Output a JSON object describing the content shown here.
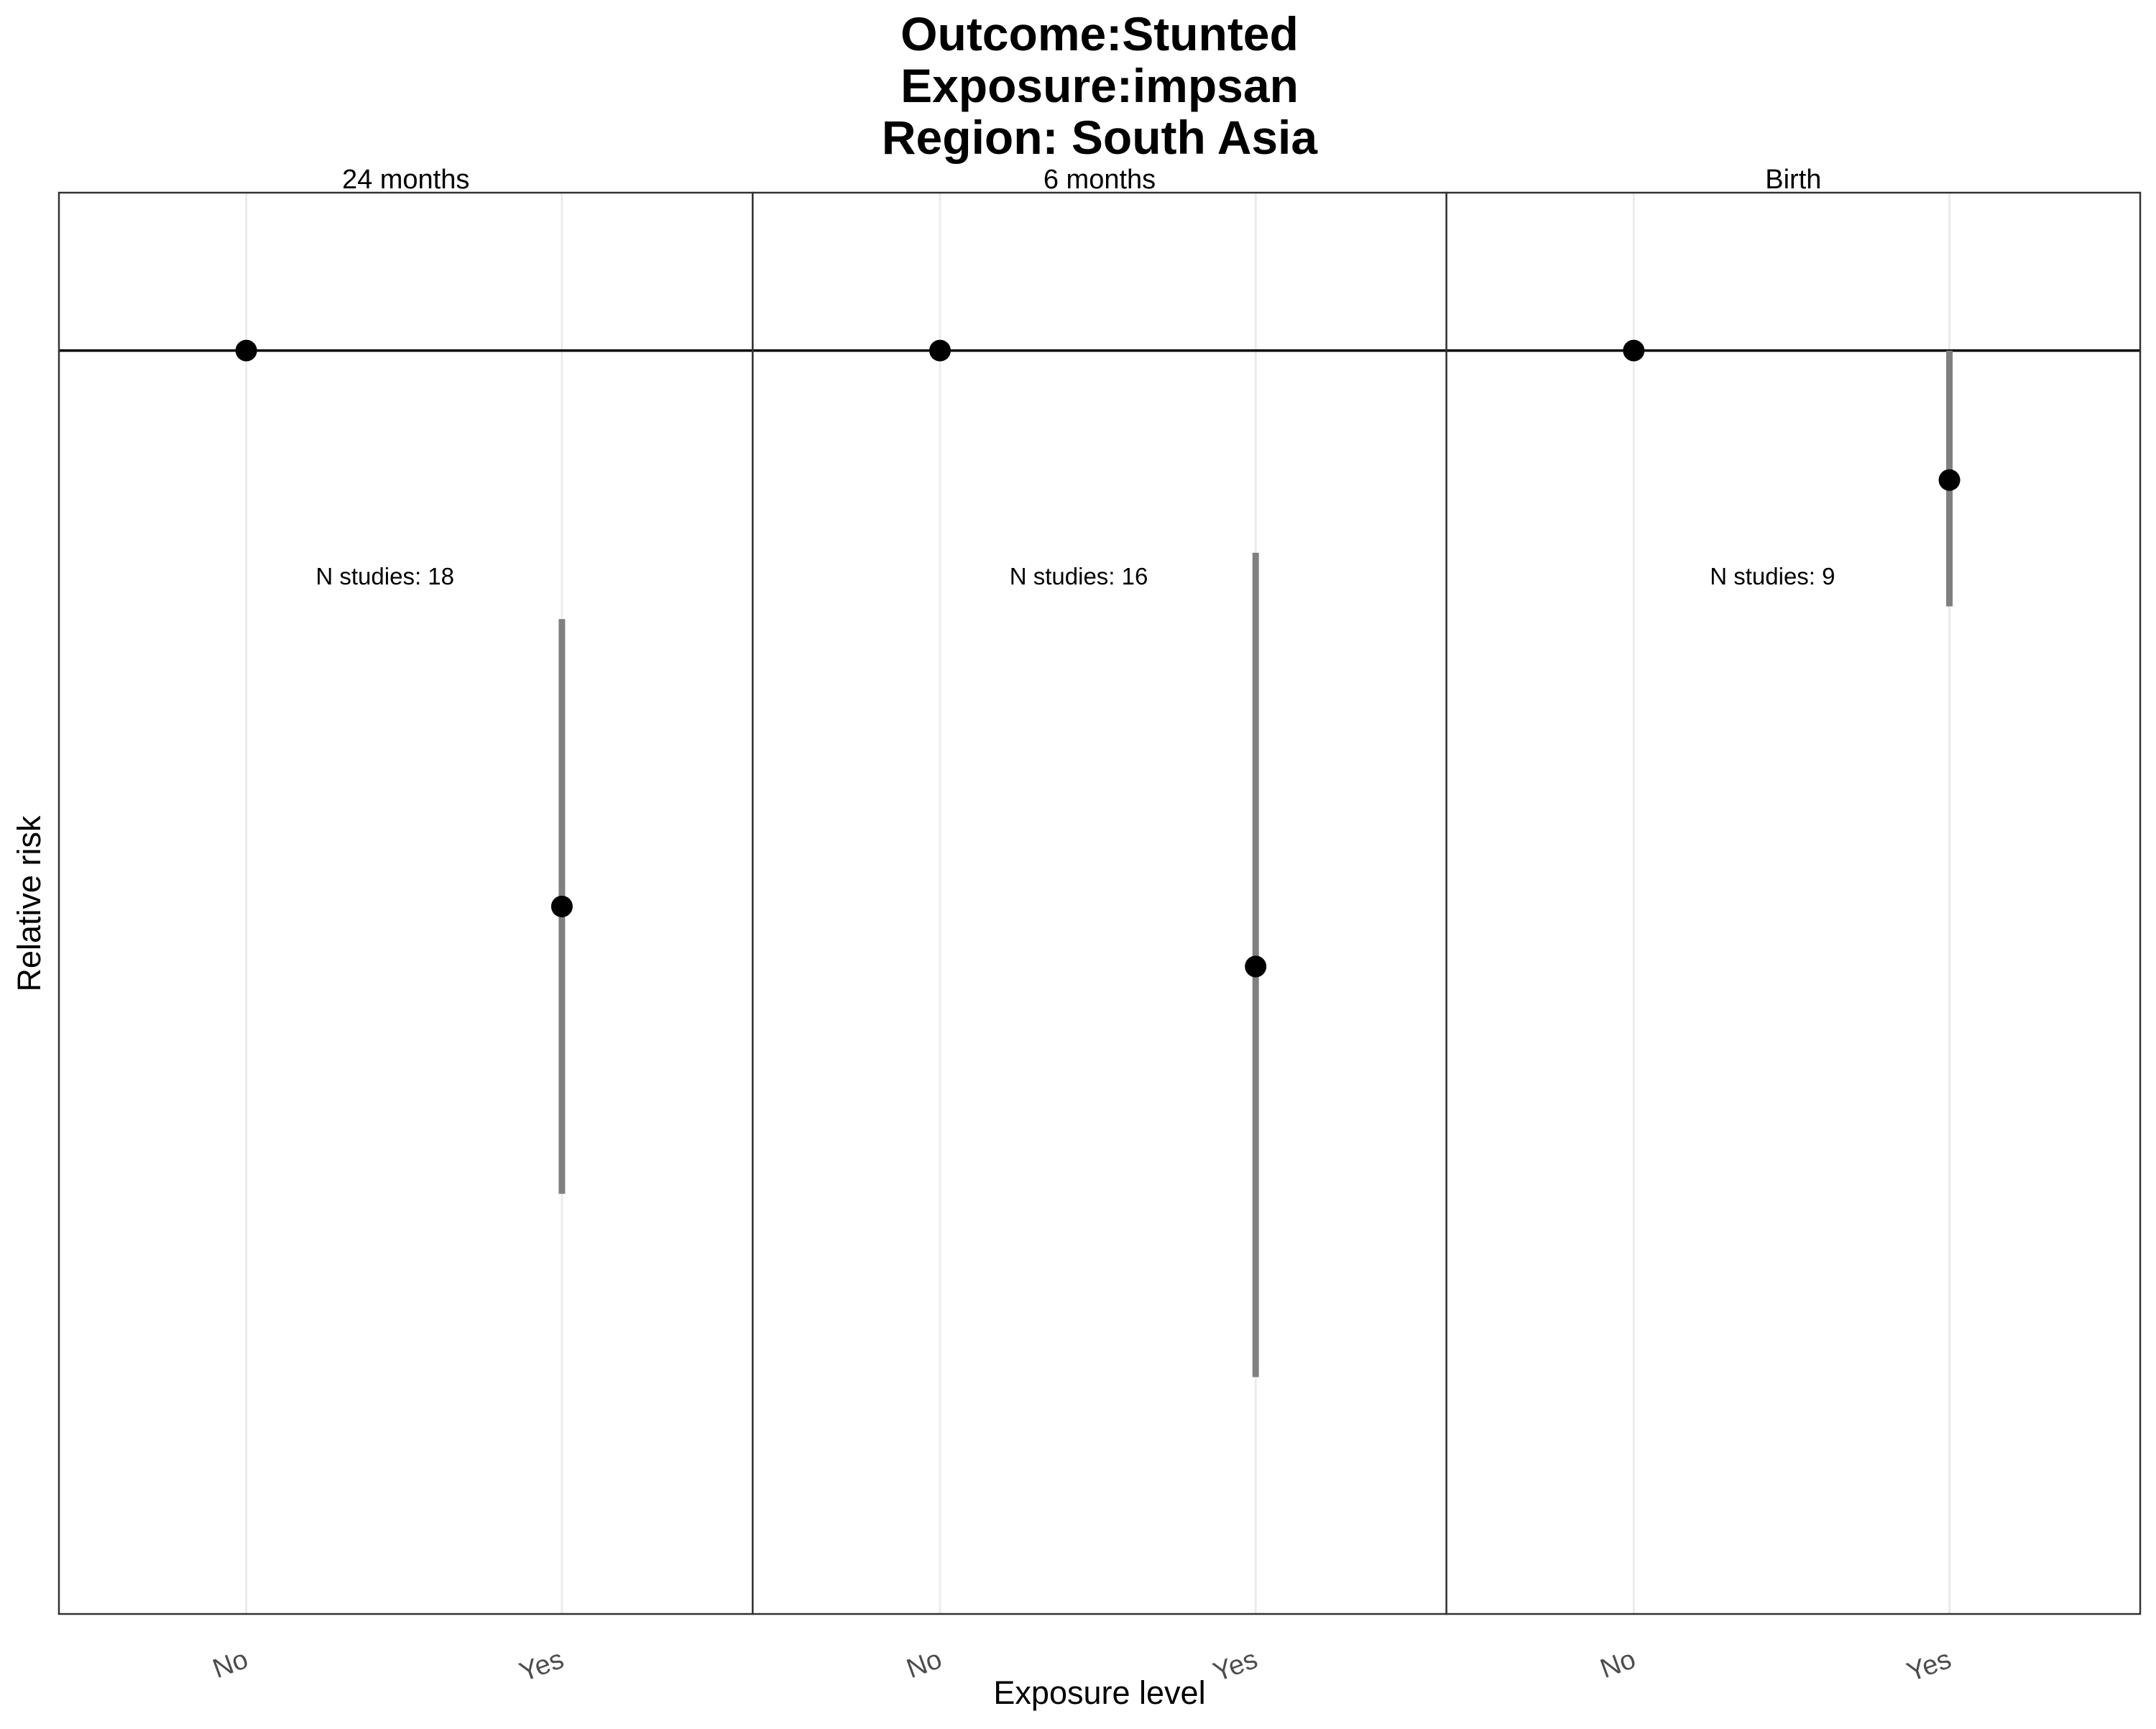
{
  "chart_data": {
    "type": "scatter",
    "title_lines": [
      "Outcome:Stunted",
      "Exposure:impsan",
      "Region: South Asia"
    ],
    "xlabel": "Exposure level",
    "ylabel": "Relative risk",
    "categories": [
      "No",
      "Yes"
    ],
    "ylim": [
      0.6,
      1.05
    ],
    "grid": "vertical major lines",
    "reference_line": 1.0,
    "colors": {
      "point": "#000000",
      "interval": "#808080",
      "reference": "#000000",
      "panel_border": "#333333",
      "grid": "#ebebeb"
    },
    "panels": [
      {
        "label": "24 months",
        "annotation": "N studies: 18",
        "points": [
          {
            "x": "No",
            "y": 1.0
          },
          {
            "x": "Yes",
            "y": 0.824,
            "lower": 0.733,
            "upper": 0.915
          }
        ]
      },
      {
        "label": "6 months",
        "annotation": "N studies: 16",
        "points": [
          {
            "x": "No",
            "y": 1.0
          },
          {
            "x": "Yes",
            "y": 0.805,
            "lower": 0.675,
            "upper": 0.936
          }
        ]
      },
      {
        "label": "Birth",
        "annotation": "N studies: 9",
        "points": [
          {
            "x": "No",
            "y": 1.0
          },
          {
            "x": "Yes",
            "y": 0.959,
            "lower": 0.919,
            "upper": 1.0
          }
        ]
      }
    ]
  }
}
